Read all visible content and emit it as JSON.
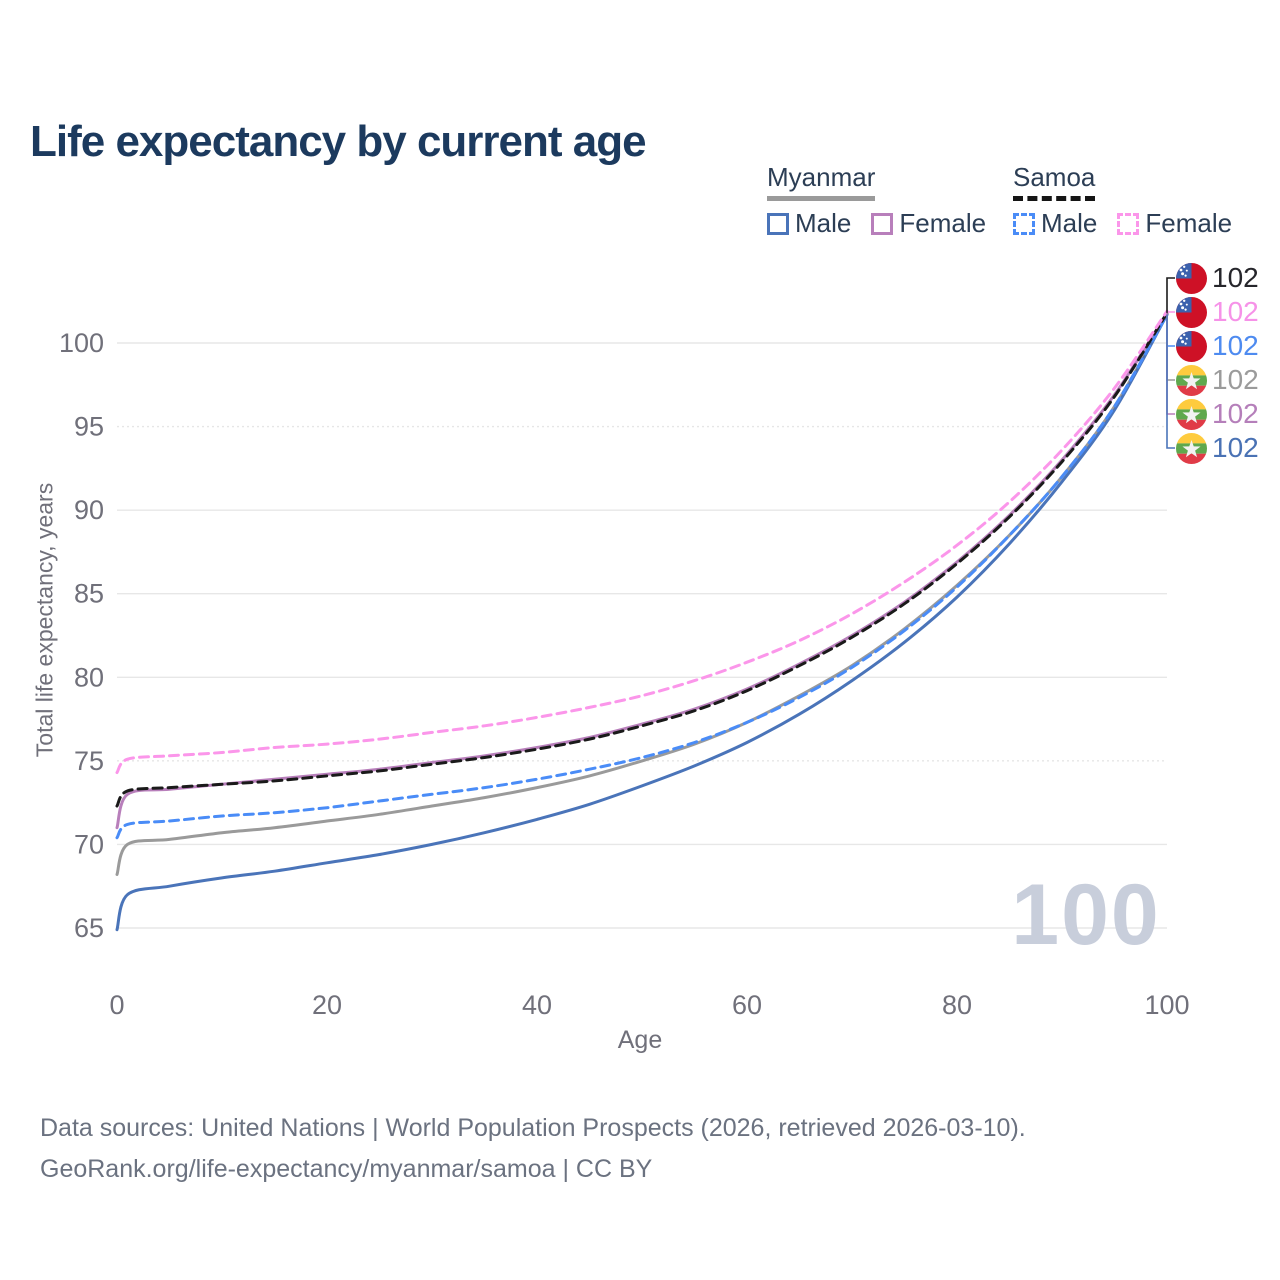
{
  "title": "Life expectancy by current age",
  "legend": {
    "groups": [
      {
        "name": "Myanmar",
        "line_style": "solid",
        "underline_color": "#9a9a9a",
        "items": [
          {
            "label": "Male",
            "color": "#4a74b9"
          },
          {
            "label": "Female",
            "color": "#b87fbb"
          }
        ]
      },
      {
        "name": "Samoa",
        "line_style": "dashed",
        "underline_color": "#151515",
        "items": [
          {
            "label": "Male",
            "color": "#4a8cf7"
          },
          {
            "label": "Female",
            "color": "#fb96ea"
          }
        ]
      }
    ]
  },
  "chart_data": {
    "type": "line",
    "title": "Life expectancy by current age",
    "xlabel": "Age",
    "ylabel": "Total life expectancy, years",
    "x_ticks": [
      0,
      20,
      40,
      60,
      80,
      100
    ],
    "y_ticks": [
      65,
      70,
      75,
      80,
      85,
      90,
      95,
      100
    ],
    "xlim": [
      0,
      100
    ],
    "ylim": [
      63.5,
      103.5
    ],
    "grid": "horizontal",
    "watermark": "100",
    "ages": [
      0,
      1,
      5,
      10,
      15,
      20,
      25,
      30,
      35,
      40,
      45,
      50,
      55,
      60,
      65,
      70,
      75,
      80,
      85,
      90,
      95,
      100
    ],
    "series": [
      {
        "id": "myanmar-total",
        "name": "Myanmar Both sexes",
        "color": "#9a9a9a",
        "dash": null,
        "values": [
          68.2,
          70.0,
          70.3,
          70.7,
          71.0,
          71.4,
          71.8,
          72.3,
          72.8,
          73.4,
          74.1,
          75.0,
          76.0,
          77.3,
          78.9,
          80.7,
          82.9,
          85.5,
          88.5,
          92.0,
          96.2,
          101.7
        ]
      },
      {
        "id": "myanmar-male",
        "name": "Myanmar Male",
        "color": "#4a74b9",
        "dash": null,
        "values": [
          64.9,
          67.0,
          67.5,
          68.0,
          68.4,
          68.9,
          69.4,
          70.0,
          70.7,
          71.5,
          72.4,
          73.5,
          74.7,
          76.1,
          77.8,
          79.8,
          82.1,
          84.8,
          88.0,
          91.7,
          96.0,
          101.7
        ]
      },
      {
        "id": "myanmar-female",
        "name": "Myanmar Female",
        "color": "#b87fbb",
        "dash": null,
        "values": [
          71.0,
          73.0,
          73.3,
          73.6,
          73.9,
          74.2,
          74.5,
          74.9,
          75.3,
          75.8,
          76.4,
          77.2,
          78.1,
          79.3,
          80.8,
          82.5,
          84.5,
          86.9,
          89.7,
          93.0,
          96.9,
          101.8
        ]
      },
      {
        "id": "samoa-male",
        "name": "Samoa Male",
        "color": "#4a8cf7",
        "dash": "9 6",
        "values": [
          70.4,
          71.2,
          71.4,
          71.7,
          71.9,
          72.2,
          72.6,
          73.0,
          73.4,
          73.9,
          74.5,
          75.2,
          76.1,
          77.3,
          78.8,
          80.6,
          82.8,
          85.4,
          88.5,
          92.0,
          96.2,
          101.7
        ]
      },
      {
        "id": "samoa-total",
        "name": "Samoa Both sexes",
        "color": "#1a1a1a",
        "dash": "9 6",
        "values": [
          72.3,
          73.2,
          73.4,
          73.6,
          73.8,
          74.1,
          74.4,
          74.8,
          75.2,
          75.7,
          76.3,
          77.1,
          78.0,
          79.2,
          80.7,
          82.4,
          84.4,
          86.8,
          89.6,
          92.9,
          96.8,
          101.8
        ]
      },
      {
        "id": "samoa-female",
        "name": "Samoa Female",
        "color": "#fb96ea",
        "dash": "9 6",
        "values": [
          74.3,
          75.1,
          75.3,
          75.5,
          75.8,
          76.0,
          76.3,
          76.7,
          77.1,
          77.6,
          78.2,
          78.9,
          79.8,
          80.9,
          82.2,
          83.8,
          85.7,
          87.9,
          90.5,
          93.6,
          97.3,
          101.9
        ]
      }
    ],
    "end_labels": [
      {
        "value": "102",
        "flag": "samoa",
        "series_id": "samoa-total",
        "color": "#26262b"
      },
      {
        "value": "102",
        "flag": "samoa",
        "series_id": "samoa-female",
        "color": "#f692e8"
      },
      {
        "value": "102",
        "flag": "samoa",
        "series_id": "samoa-male",
        "color": "#4e8bf0"
      },
      {
        "value": "102",
        "flag": "myanmar",
        "series_id": "myanmar-total",
        "color": "#9b9b9b"
      },
      {
        "value": "102",
        "flag": "myanmar",
        "series_id": "myanmar-female",
        "color": "#b57fba"
      },
      {
        "value": "102",
        "flag": "myanmar",
        "series_id": "myanmar-male",
        "color": "#4a72b4"
      }
    ]
  },
  "footer": {
    "line1": "Data sources: United Nations | World Population Prospects (2026, retrieved 2026-03-10).",
    "line2": "GeoRank.org/life-expectancy/myanmar/samoa | CC BY"
  }
}
